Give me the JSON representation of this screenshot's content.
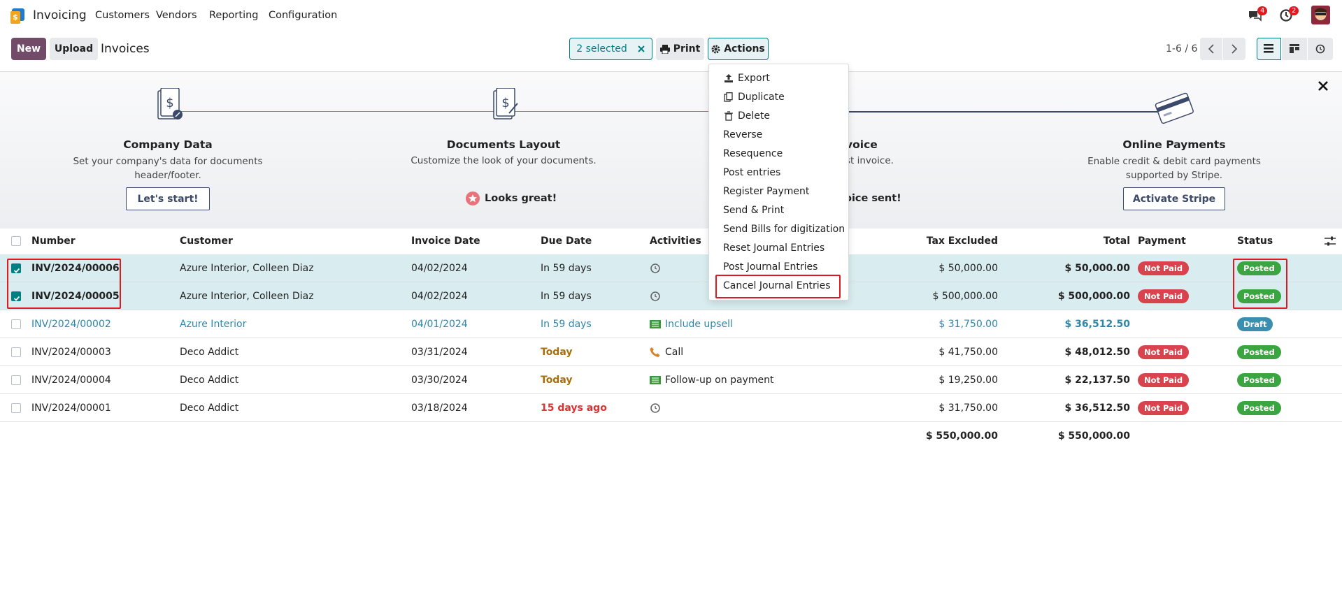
{
  "nav": {
    "app": "Invoicing",
    "menu": [
      "Customers",
      "Vendors",
      "Reporting",
      "Configuration"
    ],
    "messages_badge": "4",
    "activities_badge": "2"
  },
  "control_bar": {
    "new": "New",
    "upload": "Upload",
    "breadcrumb": "Invoices",
    "selected": "2 selected",
    "print": "Print",
    "actions": "Actions",
    "pager": "1-6 / 6"
  },
  "onboarding": [
    {
      "title": "Company Data",
      "description": "Set your company's data for documents header/footer.",
      "button": "Let's start!"
    },
    {
      "title": "Documents Layout",
      "description": "Customize the look of your documents.",
      "done": "Looks great!"
    },
    {
      "title": "voice",
      "description": "st invoice.",
      "done": "oice sent!"
    },
    {
      "title": "Online Payments",
      "description": "Enable credit & debit card payments supported by Stripe.",
      "button": "Activate Stripe"
    }
  ],
  "actions_menu": [
    "Export",
    "Duplicate",
    "Delete",
    "Reverse",
    "Resequence",
    "Post entries",
    "Register Payment",
    "Send & Print",
    "Send Bills for digitization",
    "Reset Journal Entries",
    "Post Journal Entries",
    "Cancel Journal Entries"
  ],
  "table": {
    "columns": [
      "Number",
      "Customer",
      "Invoice Date",
      "Due Date",
      "Activities",
      "Tax Excluded",
      "Total",
      "Payment",
      "Status"
    ],
    "rows": [
      {
        "selected": true,
        "number": "INV/2024/00006",
        "customer": "Azure Interior, Colleen Diaz",
        "invoice_date": "04/02/2024",
        "due_date": "In 59 days",
        "due_color": "#374151",
        "activity_icon": "clock",
        "tax_excluded": "$ 50,000.00",
        "total": "$ 50,000.00",
        "payment": "Not Paid",
        "status": "Posted"
      },
      {
        "selected": true,
        "number": "INV/2024/00005",
        "customer": "Azure Interior, Colleen Diaz",
        "invoice_date": "04/02/2024",
        "due_date": "In 59 days",
        "due_color": "#374151",
        "activity_icon": "clock",
        "tax_excluded": "$ 500,000.00",
        "total": "$ 500,000.00",
        "payment": "Not Paid",
        "status": "Posted"
      },
      {
        "selected": false,
        "number": "INV/2024/00002",
        "customer": "Azure Interior",
        "invoice_date": "04/01/2024",
        "due_date": "In 59 days",
        "due_color": "#2e86ab",
        "activity_icon": "list",
        "activity": "Include upsell",
        "tax_excluded": "$ 31,750.00",
        "total": "$ 36,512.50",
        "status": "Draft"
      },
      {
        "selected": false,
        "number": "INV/2024/00003",
        "customer": "Deco Addict",
        "invoice_date": "03/31/2024",
        "due_date": "Today",
        "due_color": "#a86f0a",
        "activity_icon": "phone",
        "activity": "Call",
        "tax_excluded": "$ 41,750.00",
        "total": "$ 48,012.50",
        "payment": "Not Paid",
        "status": "Posted"
      },
      {
        "selected": false,
        "number": "INV/2024/00004",
        "customer": "Deco Addict",
        "invoice_date": "03/30/2024",
        "due_date": "Today",
        "due_color": "#a86f0a",
        "activity_icon": "list",
        "activity": "Follow-up on payment",
        "tax_excluded": "$ 19,250.00",
        "total": "$ 22,137.50",
        "payment": "Not Paid",
        "status": "Posted"
      },
      {
        "selected": false,
        "number": "INV/2024/00001",
        "customer": "Deco Addict",
        "invoice_date": "03/18/2024",
        "due_date": "15 days ago",
        "due_color": "#d63333",
        "activity_icon": "clock",
        "tax_excluded": "$ 31,750.00",
        "total": "$ 36,512.50",
        "payment": "Not Paid",
        "status": "Posted"
      }
    ],
    "totals": {
      "tax_excluded": "$ 550,000.00",
      "total": "$ 550,000.00"
    }
  }
}
